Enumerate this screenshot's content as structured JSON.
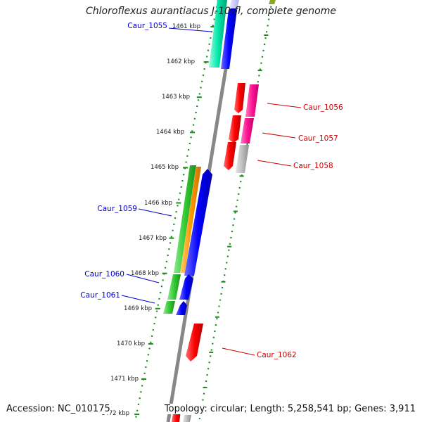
{
  "title": "Chloroflexus aurantiacus J-10-fl, complete genome",
  "footer": {
    "accession": "Accession: NC_010175",
    "summary": "Topology: circular; Length: 5,258,541 bp; Genes: 3,911"
  },
  "axis": {
    "unit": "kbp",
    "ticks": [
      1461,
      1462,
      1463,
      1464,
      1465,
      1466,
      1467,
      1468,
      1469,
      1470,
      1471,
      1472
    ]
  },
  "gene_labels": [
    {
      "name": "Caur_1055",
      "color": "#0000cc"
    },
    {
      "name": "Caur_1056",
      "color": "#cc0000"
    },
    {
      "name": "Caur_1057",
      "color": "#cc0000"
    },
    {
      "name": "Caur_1058",
      "color": "#cc0000"
    },
    {
      "name": "Caur_1059",
      "color": "#0000cc"
    },
    {
      "name": "Caur_1060",
      "color": "#0000cc"
    },
    {
      "name": "Caur_1061",
      "color": "#0000cc"
    },
    {
      "name": "Caur_1062",
      "color": "#cc0000"
    }
  ],
  "colors": {
    "forward_cds": "#0000ff",
    "reverse_cds": "#ff0000",
    "green_track": "#33cc33",
    "orange_track": "#ff9900",
    "magenta_track": "#ff1493",
    "gray_track": "#b0b0b0",
    "teal_track": "#00e6a8",
    "tick_green": "#1a8c1a",
    "backbone": "#888888"
  }
}
